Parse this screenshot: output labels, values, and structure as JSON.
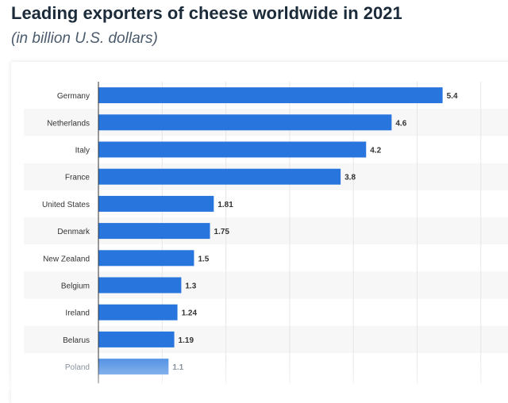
{
  "title": "Leading exporters of cheese worldwide in 2021",
  "subtitle": "(in billion U.S. dollars)",
  "chart_data": {
    "type": "bar",
    "orientation": "horizontal",
    "title": "Leading exporters of cheese worldwide in 2021",
    "subtitle": "(in billion U.S. dollars)",
    "xlabel": "",
    "ylabel": "",
    "categories": [
      "Germany",
      "Netherlands",
      "Italy",
      "France",
      "United States",
      "Denmark",
      "New Zealand",
      "Belgium",
      "Ireland",
      "Belarus",
      "Poland"
    ],
    "values": [
      5.4,
      4.6,
      4.2,
      3.8,
      1.81,
      1.75,
      1.5,
      1.3,
      1.24,
      1.19,
      1.1
    ],
    "labels": [
      "5.4",
      "4.6",
      "4.2",
      "3.8",
      "1.81",
      "1.75",
      "1.5",
      "1.3",
      "1.24",
      "1.19",
      "1.1"
    ],
    "xlim": [
      0,
      6
    ],
    "grid": true,
    "legend": "none",
    "bar_color": "#2876dd"
  }
}
